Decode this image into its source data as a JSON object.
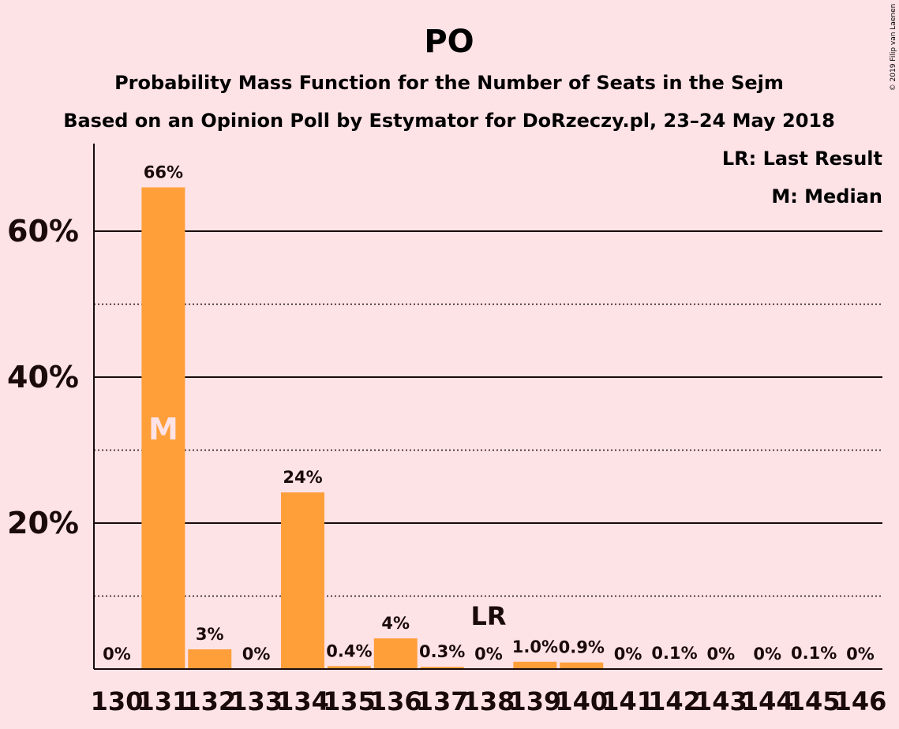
{
  "chart_data": {
    "type": "bar",
    "title": "PO",
    "subtitle": "Probability Mass Function for the Number of Seats in the Sejm",
    "subtitle2": "Based on an Opinion Poll by Estymator for DoRzeczy.pl, 23–24 May 2018",
    "copyright": "© 2019 Filip van Laenen",
    "legend": [
      "LR: Last Result",
      "M: Median"
    ],
    "categories": [
      "130",
      "131",
      "132",
      "133",
      "134",
      "135",
      "136",
      "137",
      "138",
      "139",
      "140",
      "141",
      "142",
      "143",
      "144",
      "145",
      "146"
    ],
    "values": [
      0,
      66,
      2.7,
      0,
      24.2,
      0.4,
      4.2,
      0.3,
      0,
      1.0,
      0.9,
      0,
      0.1,
      0,
      0,
      0.1,
      0
    ],
    "value_labels": [
      "0%",
      "66%",
      "3%",
      "0%",
      "24%",
      "0.4%",
      "4%",
      "0.3%",
      "0%",
      "1.0%",
      "0.9%",
      "0%",
      "0.1%",
      "0%",
      "0%",
      "0.1%",
      "0%"
    ],
    "median_category": "131",
    "median_label": "M",
    "last_result_category": "138",
    "last_result_label": "LR",
    "ylim": [
      0,
      72
    ],
    "yticks": [
      20,
      40,
      60
    ],
    "ytick_labels": [
      "20%",
      "40%",
      "60%"
    ],
    "minor_gridlines": [
      10,
      30,
      50
    ],
    "grid": true,
    "legend_position": "top-right",
    "colors": {
      "bar": "#ff9f3a",
      "background": "#fde2e6",
      "text": "#1a0a0a",
      "median_text": "#fde2e6"
    }
  }
}
